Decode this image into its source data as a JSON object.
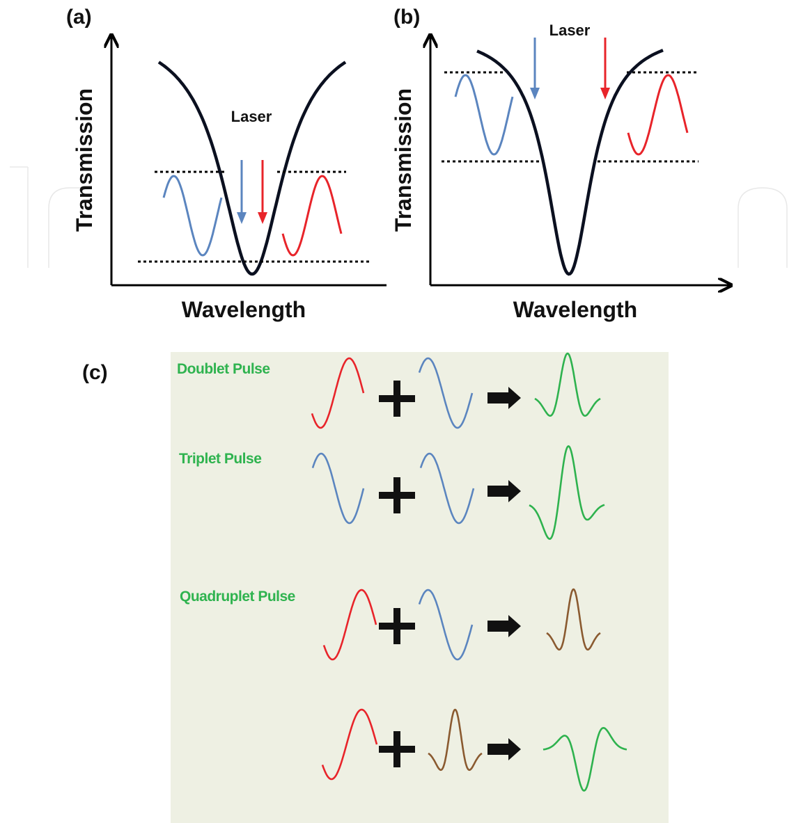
{
  "panel_a": {
    "letter": "(a)",
    "y_axis_label": "Transmission",
    "x_axis_label": "Wavelength",
    "laser_label": "Laser"
  },
  "panel_b": {
    "letter": "(b)",
    "y_axis_label": "Transmission",
    "x_axis_label": "Wavelength",
    "laser_label": "Laser"
  },
  "panel_c": {
    "letter": "(c)",
    "rows": [
      {
        "title": "Doublet Pulse",
        "inputs": [
          "red-cycle",
          "blue-cycle"
        ],
        "operator": "+",
        "output": "green-doublet"
      },
      {
        "title": "Triplet Pulse",
        "inputs": [
          "blue-cycle-inverted",
          "blue-cycle"
        ],
        "operator": "+",
        "output": "green-triplet"
      },
      {
        "title": "Quadruplet Pulse",
        "inputs": [
          "red-cycle",
          "blue-cycle"
        ],
        "operator": "+",
        "output": "brown-doublet"
      },
      {
        "title": "",
        "inputs": [
          "red-cycle",
          "brown-doublet"
        ],
        "operator": "+",
        "output": "green-quadruplet"
      }
    ]
  },
  "colors": {
    "curve": "#0b1020",
    "blue": "#5b85bf",
    "red": "#e8242a",
    "green": "#2eb24e",
    "brown": "#8a5a30",
    "panel_c_background": "#eef0e3",
    "pulse_title": "#2fb34f"
  }
}
